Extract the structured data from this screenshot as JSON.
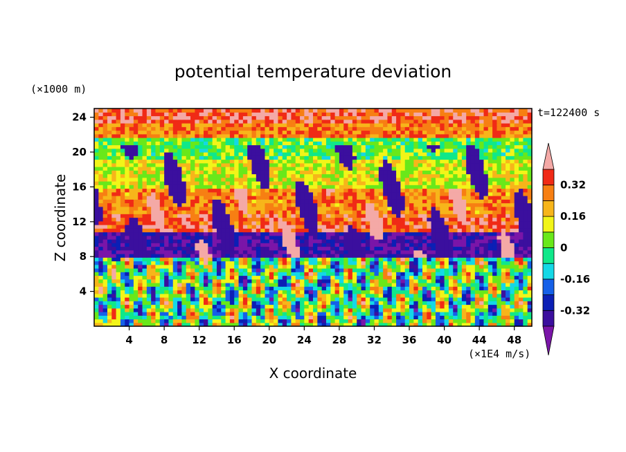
{
  "chart_data": {
    "type": "heatmap",
    "title": "potential temperature deviation",
    "xlabel": "X coordinate",
    "ylabel": "Z coordinate",
    "x_unit": "(×1E4 m/s)",
    "y_unit": "(×1000 m)",
    "time_label": "t=122400 s",
    "xlim": [
      0,
      50
    ],
    "ylim": [
      0,
      25
    ],
    "x_ticks": [
      4,
      8,
      12,
      16,
      20,
      24,
      28,
      32,
      36,
      40,
      44,
      48
    ],
    "y_ticks": [
      4,
      8,
      12,
      16,
      20,
      24
    ],
    "colorbar": {
      "levels": [
        -0.4,
        -0.32,
        -0.24,
        -0.16,
        -0.08,
        0,
        0.08,
        0.16,
        0.24,
        0.32,
        0.4
      ],
      "labeled_ticks": [
        "0.32",
        "0.16",
        "0",
        "-0.16",
        "-0.32"
      ],
      "labeled_values": [
        0.32,
        0.16,
        0,
        -0.16,
        -0.32
      ],
      "colors": [
        "#7a15a8",
        "#3b0f9e",
        "#0b1fb5",
        "#1560e8",
        "#14d8e6",
        "#10e88a",
        "#69e81a",
        "#f2f518",
        "#f7b51a",
        "#f77f13",
        "#f02a16",
        "#f4a9a6"
      ],
      "extend": "both"
    },
    "layers": [
      {
        "z_range": [
          23.5,
          25
        ],
        "dominant": 0.36
      },
      {
        "z_range": [
          21.5,
          23.5
        ],
        "dominant": 0.28
      },
      {
        "z_range": [
          19,
          21.5
        ],
        "dominant": 0.02
      },
      {
        "z_range": [
          16,
          19
        ],
        "dominant": 0.12
      },
      {
        "z_range": [
          13,
          16
        ],
        "dominant": 0.26
      },
      {
        "z_range": [
          11,
          13
        ],
        "dominant": 0.34
      },
      {
        "z_range": [
          8,
          11
        ],
        "dominant": -0.38
      },
      {
        "z_range": [
          0,
          8
        ],
        "dominant": 0.0
      }
    ]
  }
}
